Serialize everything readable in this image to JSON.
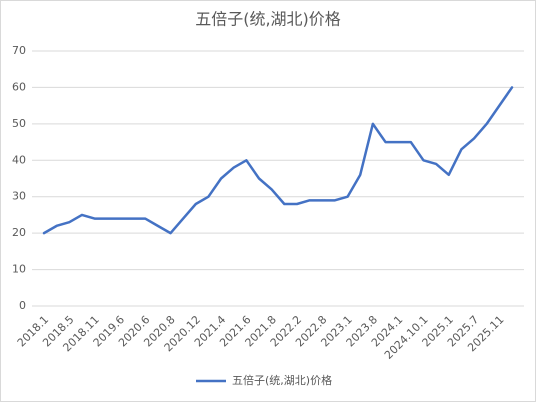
{
  "chart_data": {
    "type": "line",
    "title": "五倍子(统,湖北)价格",
    "categories": [
      "2018.1",
      null,
      "2018.5",
      null,
      "2018.11",
      null,
      "2019.6",
      null,
      "2020.6",
      null,
      "2020.8",
      null,
      "2020.12",
      null,
      "2021.4",
      null,
      "2021.6",
      null,
      "2021.8",
      null,
      "2022.2",
      null,
      "2022.8",
      null,
      "2023.1",
      null,
      "2023.8",
      null,
      "2024.1",
      null,
      "2024.10.1",
      null,
      "2025.1",
      null,
      "2025.7",
      null,
      "2025.11",
      null
    ],
    "series": [
      {
        "name": "五倍子(统,湖北)价格",
        "color": "#4472c4",
        "values": [
          20,
          22,
          23,
          25,
          24,
          24,
          24,
          24,
          24,
          22,
          20,
          24,
          28,
          30,
          35,
          38,
          40,
          35,
          32,
          28,
          28,
          29,
          29,
          29,
          30,
          36,
          50,
          45,
          45,
          45,
          40,
          39,
          36,
          43,
          46,
          50,
          55,
          60
        ]
      }
    ],
    "ylim": [
      0,
      70
    ],
    "yticks": [
      0,
      10,
      20,
      30,
      40,
      50,
      60,
      70
    ],
    "grid": true,
    "legend": "bottom"
  }
}
